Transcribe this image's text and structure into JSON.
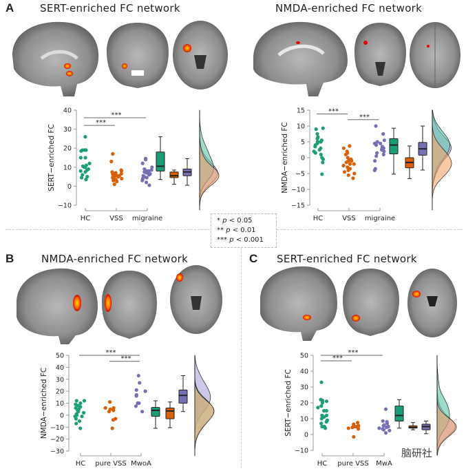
{
  "panels": {
    "A": {
      "label": "A",
      "title_left": "SERT-enriched FC network",
      "title_right": "NMDA-enriched FC network"
    },
    "B": {
      "label": "B",
      "title": "NMDA-enriched FC network"
    },
    "C": {
      "label": "C",
      "title": "SERT-enriched FC network"
    }
  },
  "legend": {
    "items": [
      {
        "stars": "*",
        "p": "p",
        "rest": " < 0.05"
      },
      {
        "stars": "**",
        "p": "p",
        "rest": " < 0.01"
      },
      {
        "stars": "***",
        "p": "p",
        "rest": " < 0.001"
      }
    ]
  },
  "watermark": "脑研社",
  "colors": {
    "green": "#1b9e77",
    "orange": "#d95f02",
    "purple": "#7570b3"
  },
  "chart_data": [
    {
      "id": "A1",
      "type": "raincloud",
      "ylabel": "SERT−enriched FC",
      "ylim": [
        -10,
        40
      ],
      "yticks": [
        -10,
        0,
        10,
        20,
        30,
        40
      ],
      "categories": [
        "HC",
        "VSS",
        "migraine"
      ],
      "points": [
        [
          26,
          19,
          18.5,
          19,
          19,
          15,
          15,
          12,
          11,
          10,
          10.5,
          9,
          8.5,
          8,
          7.5,
          6,
          5,
          4.5,
          3.5,
          10
        ],
        [
          17,
          13,
          8.5,
          8,
          7.5,
          7,
          6.5,
          6,
          6,
          5.5,
          5,
          5,
          4.5,
          4,
          3.5,
          3,
          2.5,
          1,
          7,
          5.5
        ],
        [
          14.5,
          14,
          12,
          10,
          9,
          8.5,
          8,
          7.5,
          7,
          7,
          6.5,
          6,
          5.5,
          5,
          4.5,
          4,
          3,
          2,
          0.5,
          8
        ]
      ],
      "boxes": [
        [
          3.5,
          8,
          10.5,
          18,
          26
        ],
        [
          1,
          4.5,
          5.5,
          7.5,
          8.5
        ],
        [
          0.5,
          5.5,
          7.5,
          9,
          14.5
        ]
      ],
      "significance": [
        {
          "from": 0,
          "to": 1,
          "y": 32,
          "label": "***"
        },
        {
          "from": 0,
          "to": 2,
          "y": 36,
          "label": "***"
        }
      ]
    },
    {
      "id": "A2",
      "type": "raincloud",
      "ylabel": "NMDA−enriched FC",
      "ylim": [
        -15,
        15
      ],
      "yticks": [
        -15,
        -10,
        -5,
        0,
        5,
        10,
        15
      ],
      "categories": [
        "HC",
        "VSS",
        "migraine"
      ],
      "points": [
        [
          9.3,
          9,
          7.5,
          6.5,
          6,
          5.5,
          5,
          4.5,
          4,
          3.5,
          3,
          2,
          1.5,
          1,
          0,
          -0.5,
          -1.5,
          -5.2,
          5,
          2.5
        ],
        [
          3.7,
          3,
          2,
          1.5,
          1,
          0,
          -0.5,
          -1,
          -1.5,
          -2,
          -2.5,
          -3,
          -3.5,
          -4,
          -4.5,
          -5,
          -5.5,
          -6.5,
          -2,
          -1
        ],
        [
          10,
          7.5,
          5.5,
          5,
          4.5,
          4,
          3.5,
          3,
          2.5,
          2,
          1.5,
          1,
          0.5,
          -1,
          -3.5,
          -4,
          4.5,
          3
        ]
      ],
      "boxes": [
        [
          -5.2,
          1.2,
          4,
          6,
          9.3
        ],
        [
          -6.6,
          -3.2,
          -1.5,
          0,
          3.7
        ],
        [
          -3.9,
          0.8,
          2.8,
          4.8,
          10
        ]
      ],
      "significance": [
        {
          "from": 0,
          "to": 1,
          "y": 13.8,
          "label": "***"
        },
        {
          "from": 1,
          "to": 2,
          "y": 12,
          "label": "***"
        }
      ]
    },
    {
      "id": "B",
      "type": "raincloud",
      "ylabel": "NMDA−enriched FC",
      "ylim": [
        -30,
        50
      ],
      "yticks": [
        -30,
        -20,
        -10,
        0,
        10,
        20,
        30,
        40,
        50
      ],
      "categories": [
        "HC",
        "pure VSS",
        "MwoA"
      ],
      "points": [
        [
          12,
          12,
          10,
          9,
          8,
          7,
          6,
          5,
          4,
          3,
          2,
          1,
          0,
          -1,
          -1,
          -3,
          -5,
          -7,
          -11
        ],
        [
          11,
          6,
          6,
          5,
          4,
          3,
          -3,
          -4,
          -11
        ],
        [
          33,
          27,
          21,
          20,
          17,
          16,
          10,
          10,
          7.5,
          3
        ]
      ],
      "boxes": [
        [
          -11,
          -1,
          4,
          6.5,
          12
        ],
        [
          -10.5,
          -3,
          3.5,
          6,
          11
        ],
        [
          3,
          10,
          16.5,
          21,
          33
        ]
      ],
      "significance": [
        {
          "from": 0,
          "to": 2,
          "y": 50,
          "label": "***"
        },
        {
          "from": 1,
          "to": 2,
          "y": 45,
          "label": "***"
        }
      ]
    },
    {
      "id": "C",
      "type": "raincloud",
      "ylabel": "SERT−enriched FC",
      "ylim": [
        -10,
        50
      ],
      "yticks": [
        -10,
        0,
        10,
        20,
        30,
        40,
        50
      ],
      "categories": [
        "HC",
        "pure VSS",
        "MwA"
      ],
      "points": [
        [
          33,
          22,
          21.5,
          21,
          20,
          18,
          17,
          15,
          15,
          12,
          12,
          11,
          10,
          9,
          8,
          7,
          5,
          5,
          4
        ],
        [
          7.5,
          6.5,
          5.5,
          5,
          5,
          4.5,
          4,
          3.5,
          -1.5
        ],
        [
          16,
          8.5,
          8,
          7,
          6,
          5.5,
          5,
          4.5,
          4,
          3.5,
          3,
          2.5,
          1
        ]
      ],
      "boxes": [
        [
          4,
          8.5,
          12,
          18,
          22
        ],
        [
          3,
          4,
          4.5,
          5.5,
          7.5
        ],
        [
          0.5,
          3,
          5,
          6.5,
          8.5
        ]
      ],
      "significance": [
        {
          "from": 0,
          "to": 2,
          "y": 50,
          "label": "***"
        },
        {
          "from": 0,
          "to": 1,
          "y": 46.5,
          "label": "***"
        }
      ]
    }
  ]
}
